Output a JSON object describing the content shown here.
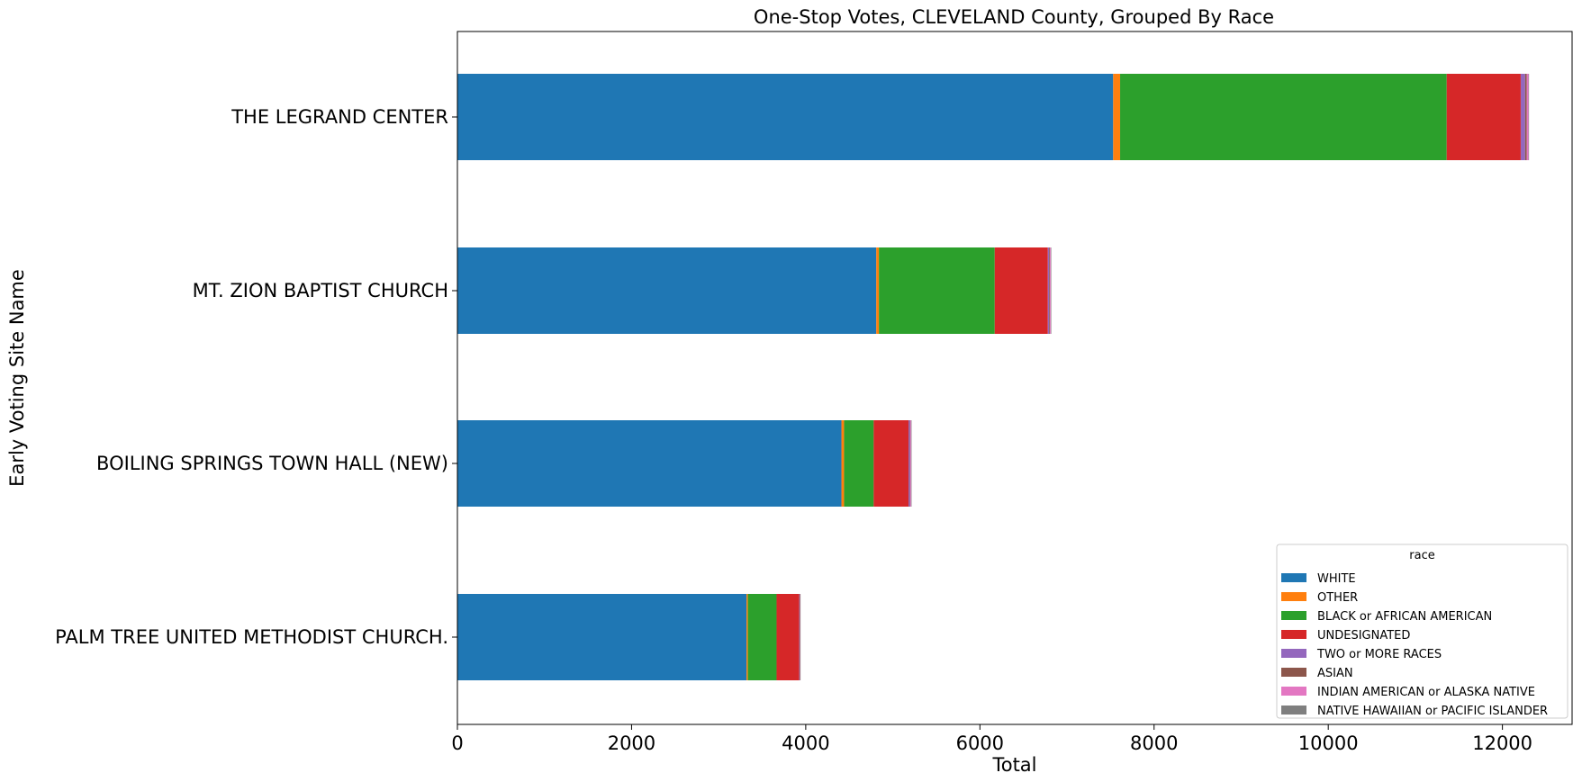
{
  "chart_data": {
    "type": "bar",
    "orientation": "horizontal",
    "stacked": true,
    "title": "One-Stop Votes, CLEVELAND County, Grouped By Race",
    "xlabel": "Total",
    "ylabel": "Early Voting Site Name",
    "xlim": [
      0,
      12800
    ],
    "xticks": [
      0,
      2000,
      4000,
      6000,
      8000,
      10000,
      12000
    ],
    "grid": false,
    "legend_title": "race",
    "legend_position": "lower-right",
    "categories": [
      "THE LEGRAND CENTER",
      "MT. ZION BAPTIST CHURCH",
      "BOILING SPRINGS TOWN HALL (NEW)",
      "PALM TREE UNITED METHODIST CHURCH."
    ],
    "series": [
      {
        "name": "WHITE",
        "color": "#1f77b4",
        "values": [
          7530,
          4810,
          4410,
          3320
        ]
      },
      {
        "name": "OTHER",
        "color": "#ff7f0e",
        "values": [
          80,
          30,
          30,
          15
        ]
      },
      {
        "name": "BLACK or AFRICAN AMERICAN",
        "color": "#2ca02c",
        "values": [
          3750,
          1330,
          340,
          330
        ]
      },
      {
        "name": "UNDESIGNATED",
        "color": "#d62728",
        "values": [
          850,
          610,
          400,
          260
        ]
      },
      {
        "name": "TWO or MORE RACES",
        "color": "#9467bd",
        "values": [
          50,
          15,
          15,
          4
        ]
      },
      {
        "name": "ASIAN",
        "color": "#8c564b",
        "values": [
          20,
          10,
          5,
          3
        ]
      },
      {
        "name": "INDIAN AMERICAN or ALASKA NATIVE",
        "color": "#e377c2",
        "values": [
          20,
          10,
          10,
          3
        ]
      },
      {
        "name": "NATIVE HAWAIIAN or PACIFIC ISLANDER",
        "color": "#7f7f7f",
        "values": [
          5,
          3,
          2,
          1
        ]
      }
    ]
  }
}
